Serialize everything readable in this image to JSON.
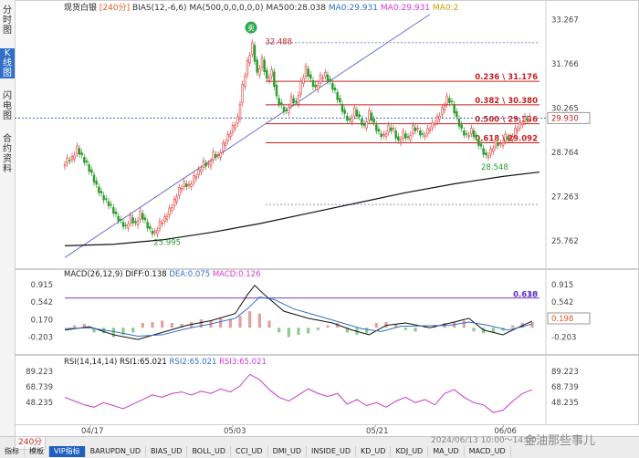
{
  "sidebar": {
    "tabs": [
      {
        "label": "分时图",
        "active": false
      },
      {
        "label": "K线图",
        "active": true
      },
      {
        "label": "闪电图",
        "active": false
      },
      {
        "label": "合约资料",
        "active": false
      }
    ]
  },
  "header": {
    "instrument": "现货白银",
    "period": "240分",
    "indicators": [
      {
        "text": "BIAS(12,-6,6)",
        "color": "#333333"
      },
      {
        "text": "MA(500,0,0,0,0,0)",
        "color": "#333333"
      },
      {
        "text": "MA500:28.038",
        "color": "#333333"
      },
      {
        "text": "MA0:29.931",
        "color": "#2f6fc7"
      },
      {
        "text": "MA0:29.931",
        "color": "#d23ad2"
      },
      {
        "text": "MA0:2",
        "color": "#c8a000"
      }
    ]
  },
  "colors": {
    "up": "#e23b3b",
    "down": "#2a9a2a",
    "ma500": "#111111",
    "trend": "#6a72d0",
    "fib": "#c81e1e",
    "diff": "#111111",
    "dea": "#2f6fc7",
    "rsi": "#c93ac9",
    "price_tag_bg": "#ffffff"
  },
  "chart_data": [
    {
      "type": "candlestick",
      "title": "",
      "x_labels": [
        "04/17",
        "05/03",
        "05/21",
        "06/06"
      ],
      "y_ticks": [
        33.267,
        31.766,
        30.265,
        28.764,
        27.263,
        25.762
      ],
      "ylim": [
        24.9,
        33.5
      ],
      "last_price": "29.930",
      "annotations": [
        {
          "text": "32.488",
          "type": "high"
        },
        {
          "text": "25.995",
          "type": "low"
        },
        {
          "text": "28.548",
          "type": "low"
        },
        {
          "text": "卖",
          "type": "sell-signal"
        }
      ],
      "fibonacci": [
        {
          "label": "0.236 \\ 31.176",
          "value": 31.176
        },
        {
          "label": "0.382 \\ 30.380",
          "value": 30.38
        },
        {
          "label": "0.500 \\ 29.736",
          "value": 29.736
        },
        {
          "label": "0.618 \\ 29.092",
          "value": 29.092
        }
      ],
      "ma500": [
        [
          0,
          25.6
        ],
        [
          20,
          25.65
        ],
        [
          40,
          25.8
        ],
        [
          60,
          26.05
        ],
        [
          80,
          26.35
        ],
        [
          100,
          26.7
        ],
        [
          120,
          27.05
        ],
        [
          140,
          27.4
        ],
        [
          160,
          27.7
        ],
        [
          180,
          27.95
        ],
        [
          195,
          28.1
        ]
      ],
      "series": [
        {
          "name": "segment-1",
          "path": [
            [
              0,
              28.3
            ],
            [
              2,
              28.5
            ],
            [
              4,
              28.55
            ],
            [
              6,
              28.9
            ],
            [
              8,
              28.6
            ],
            [
              10,
              28.35
            ],
            [
              12,
              28.0
            ],
            [
              14,
              27.6
            ],
            [
              16,
              27.3
            ],
            [
              18,
              27.1
            ],
            [
              20,
              26.9
            ],
            [
              22,
              26.6
            ],
            [
              24,
              26.4
            ],
            [
              26,
              26.2
            ],
            [
              28,
              26.55
            ],
            [
              30,
              26.3
            ],
            [
              32,
              26.7
            ],
            [
              34,
              26.4
            ],
            [
              36,
              26.1
            ],
            [
              38,
              26.0
            ],
            [
              40,
              26.35
            ],
            [
              42,
              26.5
            ],
            [
              44,
              26.8
            ],
            [
              46,
              27.1
            ],
            [
              48,
              27.5
            ],
            [
              50,
              27.7
            ],
            [
              52,
              27.6
            ],
            [
              54,
              27.9
            ],
            [
              56,
              28.1
            ],
            [
              58,
              28.4
            ],
            [
              60,
              28.3
            ],
            [
              62,
              28.7
            ],
            [
              64,
              28.6
            ],
            [
              66,
              29.0
            ],
            [
              68,
              29.3
            ],
            [
              70,
              29.6
            ],
            [
              72,
              29.9
            ],
            [
              74,
              31.0
            ],
            [
              76,
              31.8
            ],
            [
              78,
              32.4
            ],
            [
              80,
              31.4
            ],
            [
              82,
              31.9
            ],
            [
              84,
              31.2
            ],
            [
              86,
              31.5
            ],
            [
              88,
              30.6
            ],
            [
              90,
              30.3
            ],
            [
              92,
              30.1
            ],
            [
              94,
              30.6
            ],
            [
              96,
              30.4
            ],
            [
              98,
              31.1
            ],
            [
              100,
              31.6
            ],
            [
              102,
              31.2
            ],
            [
              104,
              30.9
            ],
            [
              106,
              31.3
            ],
            [
              108,
              31.4
            ],
            [
              110,
              31.1
            ]
          ]
        },
        {
          "name": "segment-2",
          "path": [
            [
              110,
              31.1
            ],
            [
              112,
              30.8
            ],
            [
              114,
              30.4
            ],
            [
              116,
              30.0
            ],
            [
              118,
              29.8
            ],
            [
              120,
              30.2
            ],
            [
              122,
              29.9
            ],
            [
              124,
              29.6
            ],
            [
              126,
              30.1
            ],
            [
              128,
              29.7
            ],
            [
              130,
              29.4
            ],
            [
              132,
              29.3
            ],
            [
              134,
              29.6
            ],
            [
              136,
              29.5
            ],
            [
              138,
              29.1
            ],
            [
              140,
              29.4
            ],
            [
              142,
              29.2
            ],
            [
              144,
              29.6
            ],
            [
              146,
              29.5
            ],
            [
              148,
              29.3
            ],
            [
              150,
              29.5
            ],
            [
              152,
              29.7
            ],
            [
              154,
              29.9
            ],
            [
              156,
              30.2
            ],
            [
              158,
              30.6
            ],
            [
              160,
              30.4
            ],
            [
              162,
              29.9
            ],
            [
              164,
              29.5
            ],
            [
              166,
              29.3
            ],
            [
              168,
              29.5
            ],
            [
              170,
              29.2
            ],
            [
              172,
              28.9
            ],
            [
              174,
              28.6
            ],
            [
              176,
              28.8
            ],
            [
              178,
              29.1
            ],
            [
              180,
              29.0
            ],
            [
              182,
              29.3
            ],
            [
              184,
              29.2
            ],
            [
              186,
              29.5
            ],
            [
              188,
              29.7
            ],
            [
              190,
              29.9
            ],
            [
              192,
              29.9
            ]
          ]
        }
      ]
    },
    {
      "type": "macd",
      "label": "MACD(26,12,9)",
      "readouts": [
        {
          "text": "DIFF:0.138",
          "color": "#111111"
        },
        {
          "text": "DEA:0.075",
          "color": "#2f6fc7"
        },
        {
          "text": "MACD:0.126",
          "color": "#d23ad2"
        }
      ],
      "y_ticks": [
        0.915,
        0.542,
        0.17,
        -0.203
      ],
      "ylim": [
        -0.5,
        1.05
      ],
      "value_tag": "0.198",
      "overlap_label": "0.630",
      "overlap_label_2": "0.618",
      "level": 0.63,
      "diff": [
        [
          0,
          -0.05
        ],
        [
          10,
          0.02
        ],
        [
          20,
          -0.15
        ],
        [
          30,
          -0.25
        ],
        [
          40,
          -0.1
        ],
        [
          50,
          0.05
        ],
        [
          60,
          0.15
        ],
        [
          70,
          0.3
        ],
        [
          75,
          0.7
        ],
        [
          78,
          0.9
        ],
        [
          82,
          0.7
        ],
        [
          90,
          0.35
        ],
        [
          100,
          0.2
        ],
        [
          110,
          0.1
        ],
        [
          118,
          -0.05
        ],
        [
          125,
          -0.15
        ],
        [
          132,
          0.05
        ],
        [
          140,
          0.1
        ],
        [
          150,
          0.0
        ],
        [
          160,
          0.12
        ],
        [
          166,
          0.2
        ],
        [
          172,
          -0.05
        ],
        [
          180,
          -0.15
        ],
        [
          186,
          0.0
        ],
        [
          192,
          0.14
        ]
      ],
      "dea": [
        [
          0,
          -0.02
        ],
        [
          10,
          0.0
        ],
        [
          20,
          -0.08
        ],
        [
          30,
          -0.18
        ],
        [
          40,
          -0.15
        ],
        [
          50,
          -0.02
        ],
        [
          60,
          0.08
        ],
        [
          70,
          0.2
        ],
        [
          75,
          0.4
        ],
        [
          80,
          0.65
        ],
        [
          86,
          0.6
        ],
        [
          94,
          0.4
        ],
        [
          104,
          0.25
        ],
        [
          114,
          0.1
        ],
        [
          122,
          -0.02
        ],
        [
          130,
          -0.08
        ],
        [
          138,
          0.03
        ],
        [
          148,
          0.04
        ],
        [
          158,
          0.05
        ],
        [
          166,
          0.12
        ],
        [
          174,
          0.05
        ],
        [
          182,
          -0.05
        ],
        [
          188,
          0.02
        ],
        [
          192,
          0.08
        ]
      ],
      "histogram": [
        [
          4,
          0.05
        ],
        [
          8,
          0.08
        ],
        [
          12,
          -0.1
        ],
        [
          16,
          -0.12
        ],
        [
          20,
          -0.2
        ],
        [
          24,
          -0.15
        ],
        [
          28,
          -0.1
        ],
        [
          32,
          0.1
        ],
        [
          36,
          0.12
        ],
        [
          40,
          0.15
        ],
        [
          44,
          0.1
        ],
        [
          48,
          0.08
        ],
        [
          52,
          0.12
        ],
        [
          56,
          0.18
        ],
        [
          60,
          0.15
        ],
        [
          64,
          0.2
        ],
        [
          68,
          0.18
        ],
        [
          72,
          0.25
        ],
        [
          76,
          0.35
        ],
        [
          80,
          0.3
        ],
        [
          84,
          0.15
        ],
        [
          88,
          -0.1
        ],
        [
          92,
          -0.2
        ],
        [
          96,
          -0.15
        ],
        [
          100,
          -0.12
        ],
        [
          104,
          -0.05
        ],
        [
          108,
          0.05
        ],
        [
          112,
          0.1
        ],
        [
          116,
          -0.1
        ],
        [
          120,
          -0.15
        ],
        [
          124,
          -0.12
        ],
        [
          128,
          0.1
        ],
        [
          132,
          0.12
        ],
        [
          136,
          0.08
        ],
        [
          140,
          -0.05
        ],
        [
          144,
          -0.08
        ],
        [
          148,
          0.05
        ],
        [
          152,
          0.06
        ],
        [
          156,
          0.1
        ],
        [
          160,
          0.12
        ],
        [
          164,
          0.15
        ],
        [
          168,
          -0.08
        ],
        [
          172,
          -0.12
        ],
        [
          176,
          -0.1
        ],
        [
          180,
          -0.06
        ],
        [
          184,
          0.05
        ],
        [
          188,
          0.1
        ],
        [
          192,
          0.12
        ]
      ]
    },
    {
      "type": "line",
      "label": "RSI(14,14,14)",
      "readouts": [
        {
          "text": "RSI1:65.021",
          "color": "#111111"
        },
        {
          "text": "RSI2:65.021",
          "color": "#2f6fc7"
        },
        {
          "text": "RSI3:65.021",
          "color": "#d23ad2"
        }
      ],
      "y_ticks": [
        89.223,
        68.739,
        48.235
      ],
      "ylim": [
        28,
        95
      ],
      "values": [
        [
          0,
          55
        ],
        [
          4,
          50
        ],
        [
          8,
          45
        ],
        [
          12,
          42
        ],
        [
          16,
          48
        ],
        [
          20,
          44
        ],
        [
          24,
          40
        ],
        [
          28,
          46
        ],
        [
          32,
          52
        ],
        [
          36,
          58
        ],
        [
          40,
          55
        ],
        [
          44,
          60
        ],
        [
          48,
          62
        ],
        [
          52,
          58
        ],
        [
          56,
          63
        ],
        [
          60,
          60
        ],
        [
          64,
          66
        ],
        [
          68,
          62
        ],
        [
          72,
          70
        ],
        [
          76,
          85
        ],
        [
          80,
          78
        ],
        [
          84,
          65
        ],
        [
          88,
          55
        ],
        [
          92,
          50
        ],
        [
          96,
          58
        ],
        [
          100,
          66
        ],
        [
          104,
          60
        ],
        [
          108,
          56
        ],
        [
          112,
          60
        ],
        [
          116,
          46
        ],
        [
          120,
          52
        ],
        [
          124,
          44
        ],
        [
          128,
          48
        ],
        [
          132,
          42
        ],
        [
          136,
          50
        ],
        [
          140,
          55
        ],
        [
          144,
          48
        ],
        [
          148,
          52
        ],
        [
          152,
          45
        ],
        [
          156,
          60
        ],
        [
          160,
          65
        ],
        [
          164,
          55
        ],
        [
          168,
          48
        ],
        [
          172,
          45
        ],
        [
          176,
          35
        ],
        [
          180,
          38
        ],
        [
          184,
          50
        ],
        [
          188,
          60
        ],
        [
          192,
          65
        ]
      ]
    }
  ],
  "timeline": {
    "range_label": "2024/06/13 10:00～14:00"
  },
  "bottom": {
    "timeframe": "240分",
    "tabs": [
      "指标",
      "模板",
      "VIP指标",
      "BARUPDN_UD",
      "BIAS_UD",
      "BOLL_UD",
      "CCI_UD",
      "DMI_UD",
      "INSIDE_UD",
      "KD_UD",
      "KDJ_UD",
      "MA_UD",
      "MACD_UD"
    ],
    "active_tab": "VIP指标",
    "watermark": "金油那些事儿"
  }
}
